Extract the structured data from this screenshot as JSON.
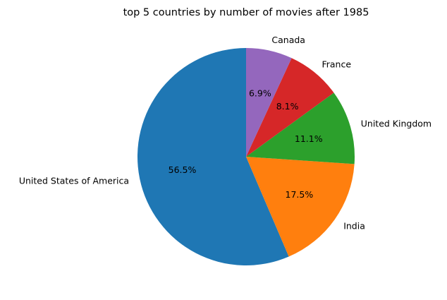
{
  "chart_data": {
    "type": "pie",
    "title": "top 5 countries by number of movies after 1985",
    "start_angle_deg": 90,
    "direction": "counterclockwise",
    "slices": [
      {
        "label": "United States of America",
        "value": 56.5,
        "pct_label": "56.5%",
        "color": "#1f77b4"
      },
      {
        "label": "India",
        "value": 17.5,
        "pct_label": "17.5%",
        "color": "#ff7f0e"
      },
      {
        "label": "United Kingdom",
        "value": 11.1,
        "pct_label": "11.1%",
        "color": "#2ca02c"
      },
      {
        "label": "France",
        "value": 8.1,
        "pct_label": "8.1%",
        "color": "#d62728"
      },
      {
        "label": "Canada",
        "value": 6.9,
        "pct_label": "6.9%",
        "color": "#9467bd"
      }
    ]
  }
}
